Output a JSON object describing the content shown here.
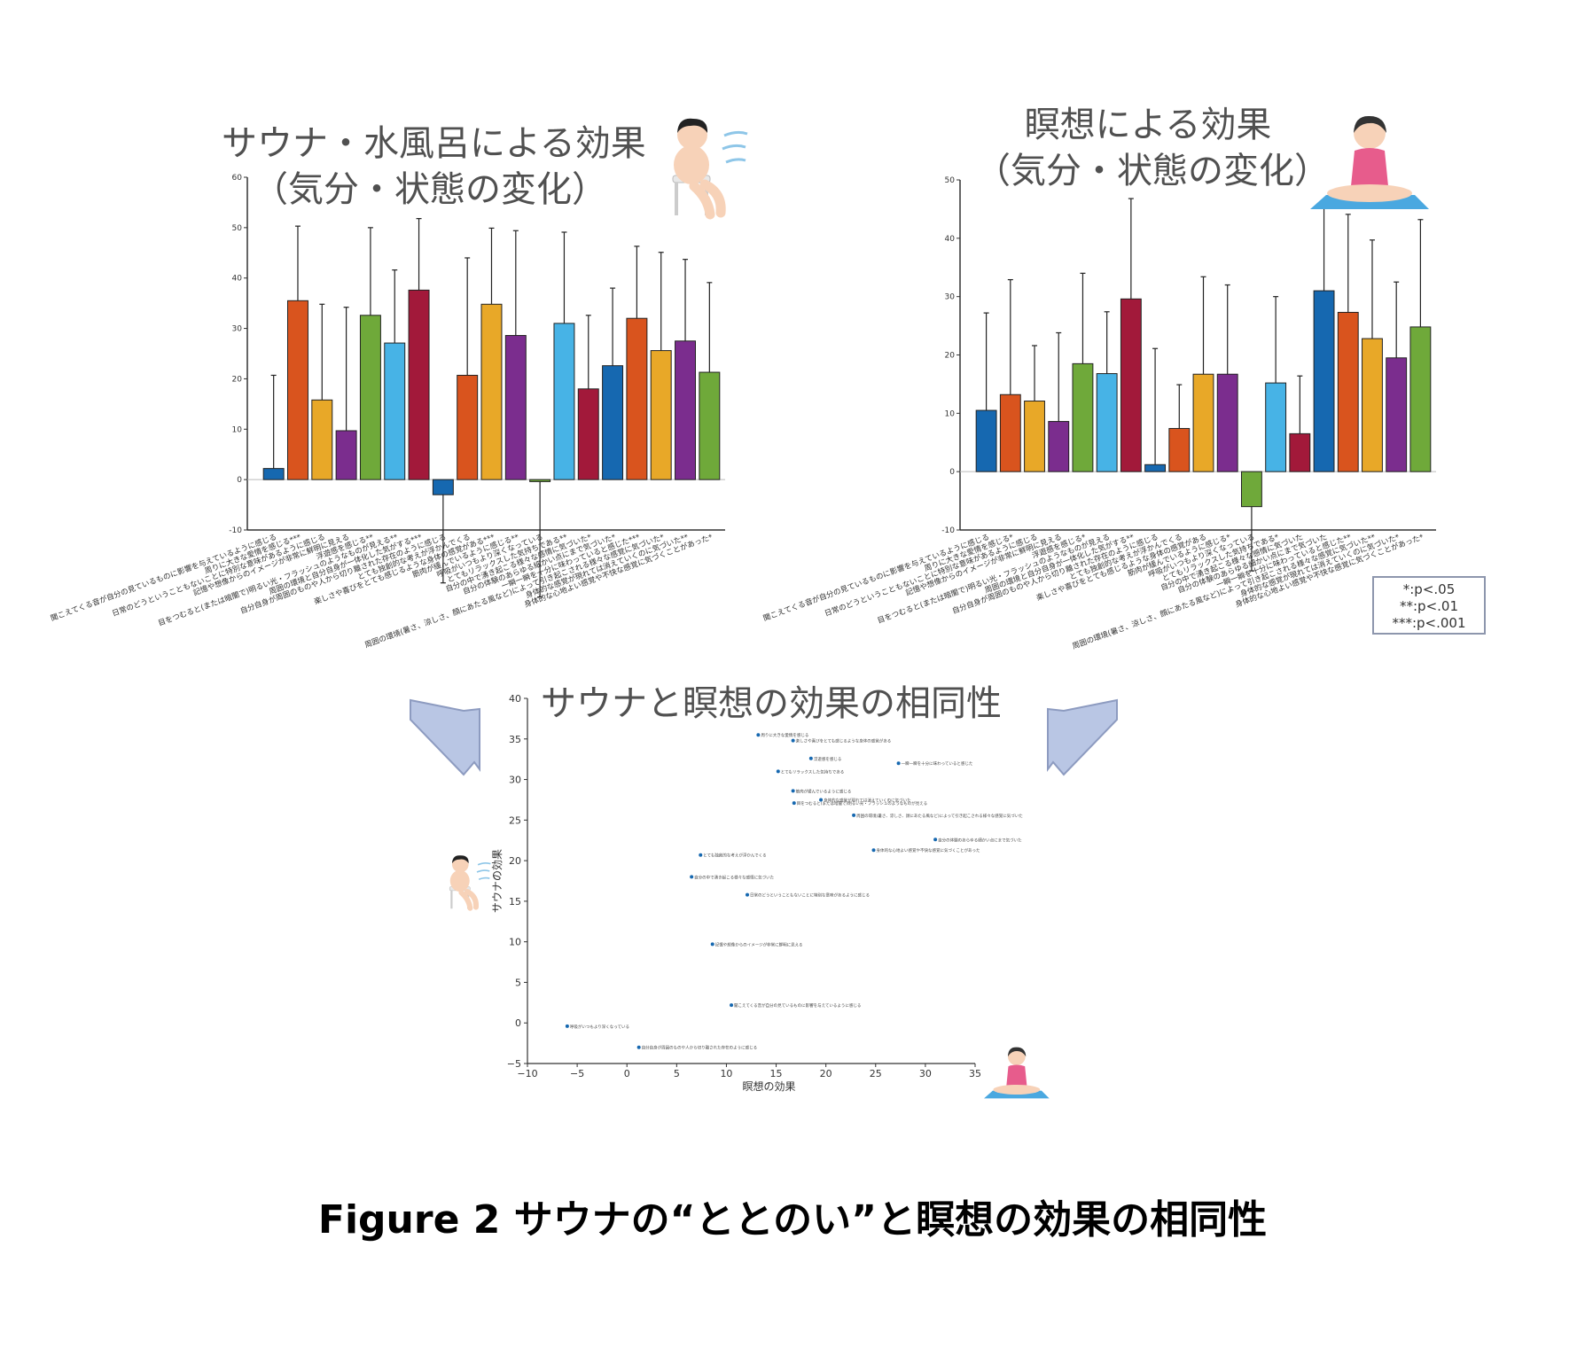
{
  "titles": {
    "sauna": [
      "サウナ・水風呂による効果",
      "（気分・状態の変化）"
    ],
    "meditation": [
      "瞑想による効果",
      "（気分・状態の変化）"
    ],
    "scatter": "サウナと瞑想の効果の相同性"
  },
  "caption": "Figure 2 サウナの“ととのい”と瞑想の効果の相同性",
  "legend": [
    "*:p<.05",
    "**:p<.01",
    "***:p<.001"
  ],
  "colors": [
    "#1668b0",
    "#d9541e",
    "#e8a828",
    "#7b2d8e",
    "#6fa93a",
    "#47b3e6",
    "#a2193a"
  ],
  "chart_data": [
    {
      "type": "bar",
      "title": "サウナ・水風呂による効果（気分・状態の変化）",
      "ylim": [
        -10,
        60
      ],
      "yticks": [
        -10,
        0,
        10,
        20,
        30,
        40,
        50,
        60
      ],
      "categories": [
        "聞こえてくる音が自分の見ているものに影響を与えているように感じる",
        "周りに大きな愛情を感じる***",
        "日常のどうということもないことに特別な意味があるように感じる",
        "記憶や想像からのイメージが非常に鮮明に見える",
        "浮遊感を感じる**",
        "目をつむると(または暗闇で)明るい光・フラッシュのようなものが見える**",
        "周囲の環境と自分自身が一体化した気がする***",
        "自分自身が周囲のものや人から切り離された存在のように感じる",
        "とても独創的な考えが浮かんでくる",
        "楽しさや喜びをとても感じるような身体の感覚がある***",
        "筋肉が緩んでいるように感じる**",
        "呼吸がいつもより深くなっている",
        "とてもリラックスした気持ちである**",
        "自分の中で湧き起こる様々な感情に気づいた*",
        "自分の体験のあらゆる細かい点にまで気づいた*",
        "一瞬一瞬を十分に味わっていると感じた***",
        "周囲の環境(暑さ、涼しさ、顔にあたる風など)によって引き起こされる様々な感覚に気づいた*",
        "身体的な感覚が現れては消えていくのに気づいた**",
        "身体的な心地よい感覚や不快な感覚に気づくことがあった*"
      ],
      "values": [
        2.2,
        35.5,
        15.8,
        9.7,
        32.6,
        27.1,
        37.6,
        -3.0,
        20.7,
        34.8,
        28.6,
        -0.4,
        31.0,
        18.0,
        22.6,
        32.0,
        25.6,
        27.5,
        21.3
      ],
      "errors": [
        18.5,
        14.8,
        19.0,
        24.5,
        17.4,
        14.5,
        14.2,
        17.5,
        23.3,
        15.1,
        20.8,
        22.9,
        18.1,
        14.6,
        15.4,
        14.3,
        19.5,
        16.2,
        17.8
      ],
      "colorIndex": [
        0,
        1,
        2,
        3,
        4,
        5,
        6,
        0,
        1,
        2,
        3,
        4,
        5,
        6,
        0,
        1,
        2,
        3,
        4
      ]
    },
    {
      "type": "bar",
      "title": "瞑想による効果（気分・状態の変化）",
      "ylim": [
        -10,
        50
      ],
      "yticks": [
        -10,
        0,
        10,
        20,
        30,
        40,
        50
      ],
      "categories": [
        "聞こえてくる音が自分の見ているものに影響を与えているように感じる",
        "周りに大きな愛情を感じる*",
        "日常のどうということもないことに特別な意味があるように感じる",
        "記憶や想像からのイメージが非常に鮮明に見える",
        "浮遊感を感じる*",
        "目をつむると(または暗闇で)明るい光・フラッシュのようなものが見える",
        "周囲の環境と自分自身が一体化した気がする**",
        "自分自身が周囲のものや人から切り離された存在のように感じる",
        "とても独創的な考えが浮かんでくる",
        "楽しさや喜びをとても感じるような身体の感覚がある",
        "筋肉が緩んでいるように感じる*",
        "呼吸がいつもより深くなっている",
        "とてもリラックスした気持ちである*",
        "自分の中で湧き起こる様々な感情に気づいた",
        "自分の体験のあらゆる細かい点にまで気づいた",
        "一瞬一瞬を十分に味わっていると感じた**",
        "周囲の環境(暑さ、涼しさ、顔にあたる風など)によって引き起こされる様々な感覚に気づいた**",
        "身体的な感覚が現れては消えていくのに気づいた*",
        "身体的な心地よい感覚や不快な感覚に気づくことがあった*"
      ],
      "values": [
        10.5,
        13.2,
        12.1,
        8.6,
        18.5,
        16.8,
        29.6,
        1.2,
        7.4,
        16.7,
        16.7,
        -6.0,
        15.2,
        6.5,
        31.0,
        27.3,
        22.8,
        19.5,
        24.8
      ],
      "errors": [
        16.7,
        19.7,
        9.5,
        15.2,
        15.5,
        10.6,
        17.2,
        19.9,
        7.5,
        16.7,
        15.3,
        11.0,
        14.8,
        9.9,
        15.2,
        16.8,
        16.9,
        13.0,
        18.4
      ],
      "colorIndex": [
        0,
        1,
        2,
        3,
        4,
        5,
        6,
        0,
        1,
        2,
        3,
        4,
        5,
        6,
        0,
        1,
        2,
        3,
        4
      ]
    },
    {
      "type": "scatter",
      "title": "サウナと瞑想の効果の相同性",
      "xlabel": "瞑想の効果",
      "ylabel": "サウナの効果",
      "xlim": [
        -10,
        35
      ],
      "ylim": [
        -5,
        40
      ],
      "xticks": [
        -10,
        -5,
        0,
        5,
        10,
        15,
        20,
        25,
        30,
        35
      ],
      "yticks": [
        -5,
        0,
        5,
        10,
        15,
        20,
        25,
        30,
        35,
        40
      ],
      "points": [
        {
          "x": 13.2,
          "y": 35.5,
          "label": "周りに大きな愛情を感じる"
        },
        {
          "x": 16.7,
          "y": 34.8,
          "label": "楽しさや喜びをとても感じるような身体の感覚がある"
        },
        {
          "x": 18.5,
          "y": 32.6,
          "label": "浮遊感を感じる"
        },
        {
          "x": 27.3,
          "y": 32.0,
          "label": "一瞬一瞬を十分に味わっていると感じた"
        },
        {
          "x": 15.2,
          "y": 31.0,
          "label": "とてもリラックスした気持ちである"
        },
        {
          "x": 16.7,
          "y": 28.6,
          "label": "筋肉が緩んでいるように感じる"
        },
        {
          "x": 19.5,
          "y": 27.5,
          "label": "身体的な感覚が現れては消えていくのに気づいた"
        },
        {
          "x": 16.8,
          "y": 27.1,
          "label": "目をつむると(または暗闇で)明るい光・フラッシュのようなものが見える"
        },
        {
          "x": 22.8,
          "y": 25.6,
          "label": "周囲の環境(暑さ、涼しさ、顔にあたる風など)によって引き起こされる様々な感覚に気づいた"
        },
        {
          "x": 31.0,
          "y": 22.6,
          "label": "自分の体験のあらゆる細かい点にまで気づいた"
        },
        {
          "x": 24.8,
          "y": 21.3,
          "label": "身体的な心地よい感覚や不快な感覚に気づくことがあった"
        },
        {
          "x": 7.4,
          "y": 20.7,
          "label": "とても独創的な考えが浮かんでくる"
        },
        {
          "x": 6.5,
          "y": 18.0,
          "label": "自分の中で湧き起こる様々な感情に気づいた"
        },
        {
          "x": 12.1,
          "y": 15.8,
          "label": "日常のどうということもないことに特別な意味があるように感じる"
        },
        {
          "x": 8.6,
          "y": 9.7,
          "label": "記憶や想像からのイメージが非常に鮮明に見える"
        },
        {
          "x": 10.5,
          "y": 2.2,
          "label": "聞こえてくる音が自分の見ているものに影響を与えているように感じる"
        },
        {
          "x": -6.0,
          "y": -0.4,
          "label": "呼吸がいつもより深くなっている"
        },
        {
          "x": 1.2,
          "y": -3.0,
          "label": "自分自身が周囲のものや人から切り離された存在のように感じる"
        }
      ]
    }
  ]
}
